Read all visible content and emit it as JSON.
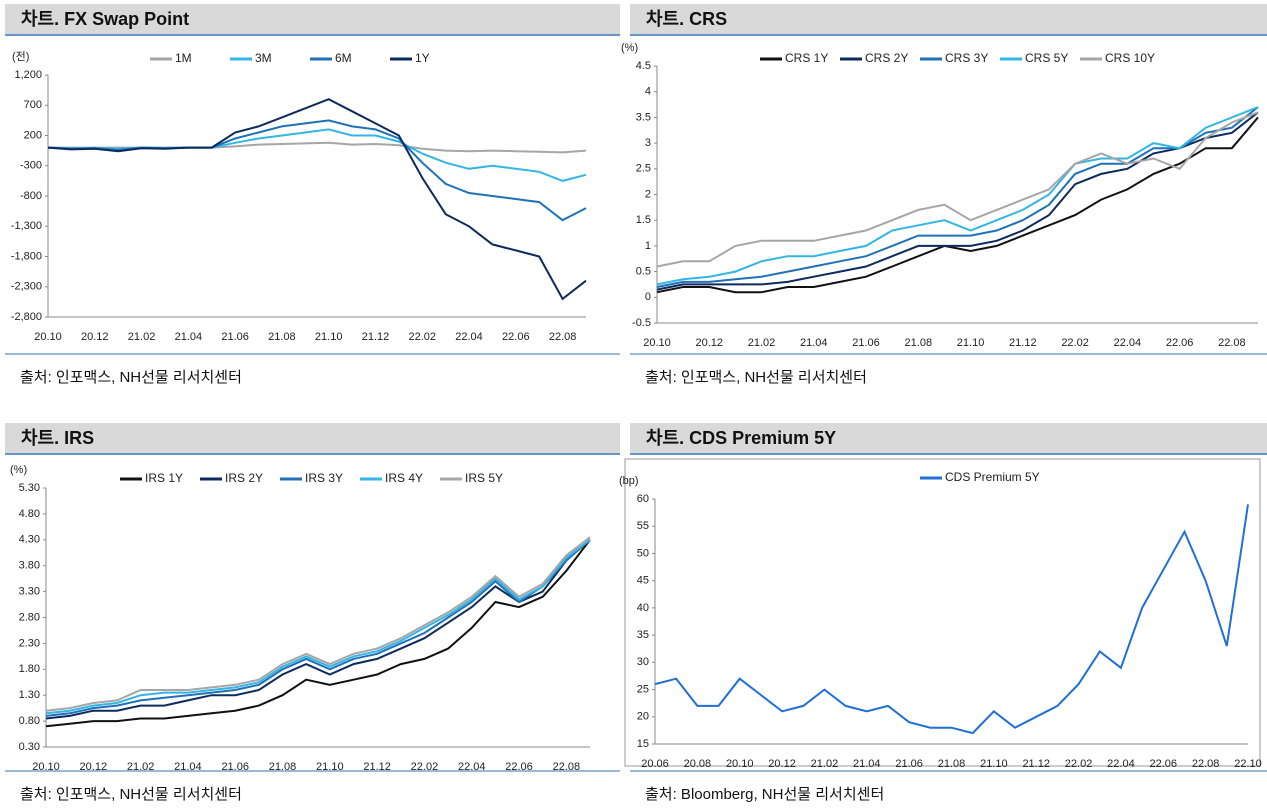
{
  "chart_data": [
    {
      "type": "line",
      "title": "차트. FX Swap Point",
      "y_label": "(전)",
      "source": "출처: 인포맥스, NH선물 리서치센터",
      "categories": [
        "20.10",
        null,
        "20.12",
        null,
        "21.02",
        null,
        "21.04",
        null,
        "21.06",
        null,
        "21.08",
        null,
        "21.10",
        null,
        "21.12",
        null,
        "22.02",
        null,
        "22.04",
        null,
        "22.06",
        null,
        "22.08",
        null
      ],
      "ylim": [
        -2800,
        1200
      ],
      "yticks": [
        {
          "value": 1200,
          "label": "1,200"
        },
        700,
        200,
        -300,
        -800,
        {
          "value": -1300,
          "label": "-1,300"
        },
        {
          "value": -1800,
          "label": "-1,800"
        },
        {
          "value": -2300,
          "label": "-2,300"
        },
        {
          "value": -2800,
          "label": "-2,800"
        }
      ],
      "grid": false,
      "series": [
        {
          "name": "1M",
          "color": "#a6a6a6",
          "values": [
            0,
            0,
            0,
            0,
            0,
            0,
            0,
            0,
            20,
            50,
            60,
            70,
            80,
            50,
            60,
            40,
            -20,
            -50,
            -60,
            -50,
            -60,
            -70,
            -80,
            -50
          ]
        },
        {
          "name": "3M",
          "color": "#33b5e5",
          "values": [
            0,
            -10,
            -5,
            -20,
            0,
            -5,
            0,
            0,
            80,
            150,
            200,
            250,
            300,
            200,
            200,
            100,
            -100,
            -250,
            -350,
            -300,
            -350,
            -400,
            -550,
            -450
          ]
        },
        {
          "name": "6M",
          "color": "#1f72b8",
          "values": [
            0,
            -20,
            -10,
            -40,
            0,
            -10,
            0,
            0,
            150,
            250,
            350,
            400,
            450,
            350,
            300,
            150,
            -250,
            -600,
            -750,
            -800,
            -850,
            -900,
            -1200,
            -1000
          ]
        },
        {
          "name": "1Y",
          "color": "#0d2a5e",
          "values": [
            0,
            -30,
            -20,
            -60,
            -10,
            -20,
            0,
            0,
            250,
            350,
            500,
            650,
            800,
            600,
            400,
            200,
            -500,
            -1100,
            -1300,
            -1600,
            -1700,
            -1800,
            -2500,
            -2200
          ]
        }
      ]
    },
    {
      "type": "line",
      "title": "차트. CRS",
      "y_label": "(%)",
      "source": "출처: 인포맥스, NH선물 리서치센터",
      "categories": [
        "20.10",
        null,
        "20.12",
        null,
        "21.02",
        null,
        "21.04",
        null,
        "21.06",
        null,
        "21.08",
        null,
        "21.10",
        null,
        "21.12",
        null,
        "22.02",
        null,
        "22.04",
        null,
        "22.06",
        null,
        "22.08",
        null
      ],
      "ylim": [
        -0.5,
        4.5
      ],
      "yticks": [
        4.5,
        4,
        3.5,
        3,
        2.5,
        2,
        1.5,
        1,
        0.5,
        0,
        -0.5
      ],
      "grid": false,
      "series": [
        {
          "name": "CRS 1Y",
          "color": "#111111",
          "values": [
            0.1,
            0.2,
            0.2,
            0.1,
            0.1,
            0.2,
            0.2,
            0.3,
            0.4,
            0.6,
            0.8,
            1.0,
            0.9,
            1.0,
            1.2,
            1.4,
            1.6,
            1.9,
            2.1,
            2.4,
            2.6,
            2.9,
            2.9,
            3.5
          ]
        },
        {
          "name": "CRS 2Y",
          "color": "#0d2a5e",
          "values": [
            0.15,
            0.25,
            0.25,
            0.25,
            0.25,
            0.3,
            0.4,
            0.5,
            0.6,
            0.8,
            1.0,
            1.0,
            1.0,
            1.1,
            1.3,
            1.6,
            2.2,
            2.4,
            2.5,
            2.8,
            2.9,
            3.1,
            3.2,
            3.6
          ]
        },
        {
          "name": "CRS 3Y",
          "color": "#1f72b8",
          "values": [
            0.2,
            0.3,
            0.3,
            0.35,
            0.4,
            0.5,
            0.6,
            0.7,
            0.8,
            1.0,
            1.2,
            1.2,
            1.2,
            1.3,
            1.5,
            1.8,
            2.4,
            2.6,
            2.6,
            2.9,
            2.9,
            3.2,
            3.3,
            3.7
          ]
        },
        {
          "name": "CRS 5Y",
          "color": "#33b5e5",
          "values": [
            0.25,
            0.35,
            0.4,
            0.5,
            0.7,
            0.8,
            0.8,
            0.9,
            1.0,
            1.3,
            1.4,
            1.5,
            1.3,
            1.5,
            1.7,
            2.0,
            2.6,
            2.7,
            2.7,
            3.0,
            2.9,
            3.3,
            3.5,
            3.7
          ]
        },
        {
          "name": "CRS 10Y",
          "color": "#a6a6a6",
          "values": [
            0.6,
            0.7,
            0.7,
            1.0,
            1.1,
            1.1,
            1.1,
            1.2,
            1.3,
            1.5,
            1.7,
            1.8,
            1.5,
            1.7,
            1.9,
            2.1,
            2.6,
            2.8,
            2.6,
            2.7,
            2.5,
            3.1,
            3.4,
            3.6
          ]
        }
      ]
    },
    {
      "type": "line",
      "title": "차트. IRS",
      "y_label": "(%)",
      "source": "출처: 인포맥스, NH선물 리서치센터",
      "categories": [
        "20.10",
        null,
        "20.12",
        null,
        "21.02",
        null,
        "21.04",
        null,
        "21.06",
        null,
        "21.08",
        null,
        "21.10",
        null,
        "21.12",
        null,
        "22.02",
        null,
        "22.04",
        null,
        "22.06",
        null,
        "22.08",
        null
      ],
      "ylim": [
        0.3,
        5.3
      ],
      "yticks": [
        {
          "value": 5.3,
          "label": "5.30"
        },
        {
          "value": 4.8,
          "label": "4.80"
        },
        {
          "value": 4.3,
          "label": "4.30"
        },
        {
          "value": 3.8,
          "label": "3.80"
        },
        {
          "value": 3.3,
          "label": "3.30"
        },
        {
          "value": 2.8,
          "label": "2.80"
        },
        {
          "value": 2.3,
          "label": "2.30"
        },
        {
          "value": 1.8,
          "label": "1.80"
        },
        {
          "value": 1.3,
          "label": "1.30"
        },
        {
          "value": 0.8,
          "label": "0.80"
        },
        {
          "value": 0.3,
          "label": "0.30"
        }
      ],
      "grid": false,
      "series": [
        {
          "name": "IRS 1Y",
          "color": "#111111",
          "values": [
            0.7,
            0.75,
            0.8,
            0.8,
            0.85,
            0.85,
            0.9,
            0.95,
            1.0,
            1.1,
            1.3,
            1.6,
            1.5,
            1.6,
            1.7,
            1.9,
            2.0,
            2.2,
            2.6,
            3.1,
            3.0,
            3.2,
            3.7,
            4.3
          ]
        },
        {
          "name": "IRS 2Y",
          "color": "#0d2a5e",
          "values": [
            0.85,
            0.9,
            1.0,
            1.0,
            1.1,
            1.1,
            1.2,
            1.3,
            1.3,
            1.4,
            1.7,
            1.9,
            1.7,
            1.9,
            2.0,
            2.2,
            2.4,
            2.7,
            3.0,
            3.4,
            3.1,
            3.3,
            3.9,
            4.3
          ]
        },
        {
          "name": "IRS 3Y",
          "color": "#1f72b8",
          "values": [
            0.9,
            0.95,
            1.05,
            1.1,
            1.2,
            1.25,
            1.3,
            1.35,
            1.4,
            1.5,
            1.8,
            2.0,
            1.8,
            2.0,
            2.1,
            2.3,
            2.5,
            2.8,
            3.1,
            3.5,
            3.1,
            3.4,
            3.9,
            4.3
          ]
        },
        {
          "name": "IRS 4Y",
          "color": "#33b5e5",
          "values": [
            0.95,
            1.0,
            1.1,
            1.15,
            1.3,
            1.35,
            1.35,
            1.4,
            1.45,
            1.55,
            1.85,
            2.05,
            1.85,
            2.05,
            2.15,
            2.35,
            2.6,
            2.85,
            3.15,
            3.55,
            3.15,
            3.4,
            3.95,
            4.3
          ]
        },
        {
          "name": "IRS 5Y",
          "color": "#a6a6a6",
          "values": [
            1.0,
            1.05,
            1.15,
            1.2,
            1.4,
            1.4,
            1.4,
            1.45,
            1.5,
            1.6,
            1.9,
            2.1,
            1.9,
            2.1,
            2.2,
            2.4,
            2.65,
            2.9,
            3.2,
            3.6,
            3.2,
            3.45,
            4.0,
            4.35
          ]
        }
      ]
    },
    {
      "type": "line",
      "title": "차트. CDS Premium 5Y",
      "y_label": "(bp)",
      "source": "출처: Bloomberg, NH선물 리서치센터",
      "categories": [
        "20.06",
        null,
        "20.08",
        null,
        "20.10",
        null,
        "20.12",
        null,
        "21.02",
        null,
        "21.04",
        null,
        "21.06",
        null,
        "21.08",
        null,
        "21.10",
        null,
        "21.12",
        null,
        "22.02",
        null,
        "22.04",
        null,
        "22.06",
        null,
        "22.08",
        null,
        "22.10"
      ],
      "ylim": [
        15,
        60
      ],
      "yticks": [
        60,
        55,
        50,
        45,
        40,
        35,
        30,
        25,
        20,
        15
      ],
      "grid": false,
      "series": [
        {
          "name": "CDS Premium 5Y",
          "color": "#1f6fd6",
          "values": [
            26,
            27,
            22,
            22,
            27,
            24,
            21,
            22,
            25,
            22,
            21,
            22,
            19,
            18,
            18,
            17,
            21,
            18,
            20,
            22,
            26,
            32,
            29,
            40,
            47,
            54,
            45,
            33,
            59
          ]
        }
      ]
    }
  ]
}
